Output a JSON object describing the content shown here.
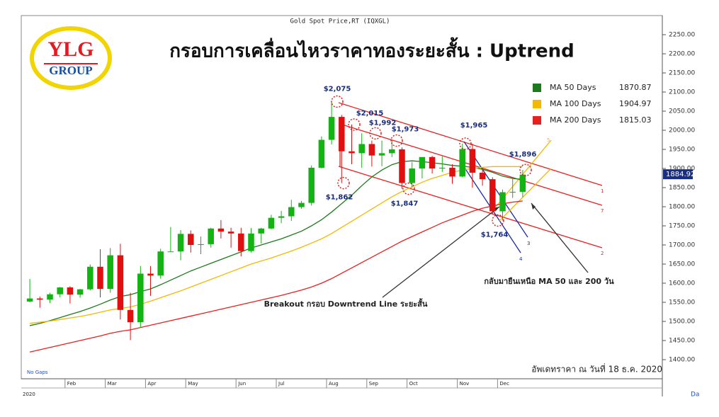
{
  "chart_data": {
    "type": "candlestick",
    "source_title": "Gold Spot Price,RT (IQXGL)",
    "title": "กรอบการเคลื่อนไหวราคาทองระยะสั้น : Uptrend",
    "logo": {
      "top": "YLG",
      "bottom": "GROUP"
    },
    "categories": [
      null,
      null,
      null,
      null,
      "Feb",
      null,
      null,
      null,
      "Mar",
      null,
      null,
      null,
      "Apr",
      null,
      null,
      null,
      "May",
      null,
      null,
      null,
      null,
      "Jun",
      null,
      null,
      null,
      "Jul",
      null,
      null,
      null,
      null,
      "Aug",
      null,
      null,
      null,
      "Sep",
      null,
      null,
      null,
      "Oct",
      null,
      null,
      null,
      null,
      "Nov",
      null,
      null,
      null,
      "Dec",
      null,
      null
    ],
    "year_label": "2020",
    "axis_end_label": "Da",
    "gaps_label": "No Gaps",
    "open": [
      1552,
      1560,
      1557,
      1571,
      1589,
      1570,
      1584,
      1643,
      1585,
      1673,
      1530,
      1498,
      1625,
      1620,
      1683,
      1683,
      1729,
      1700,
      1702,
      1743,
      1735,
      1730,
      1684,
      1730,
      1743,
      1771,
      1775,
      1799,
      1810,
      1902,
      1975,
      2035,
      1945,
      1940,
      1964,
      1934,
      1940,
      1950,
      1862,
      1900,
      1930,
      1900,
      1902,
      1879,
      1951,
      1889,
      1872,
      1788,
      1838,
      1839
    ],
    "high": [
      1611,
      1565,
      1575,
      1590,
      1592,
      1585,
      1649,
      1689,
      1692,
      1703,
      1575,
      1645,
      1645,
      1690,
      1747,
      1739,
      1738,
      1722,
      1745,
      1765,
      1745,
      1745,
      1744,
      1745,
      1779,
      1789,
      1818,
      1815,
      1908,
      1984,
      2075,
      2040,
      2015,
      1992,
      1973,
      1973,
      1973,
      1955,
      1917,
      1925,
      1933,
      1932,
      1911,
      1965,
      1965,
      1898,
      1877,
      1845,
      1875,
      1896
    ],
    "low": [
      1550,
      1536,
      1548,
      1563,
      1547,
      1562,
      1581,
      1563,
      1575,
      1505,
      1451,
      1484,
      1567,
      1612,
      1682,
      1660,
      1680,
      1676,
      1693,
      1717,
      1693,
      1670,
      1680,
      1704,
      1741,
      1757,
      1763,
      1795,
      1803,
      1900,
      1963,
      1862,
      1911,
      1902,
      1905,
      1906,
      1930,
      1847,
      1850,
      1874,
      1887,
      1891,
      1860,
      1877,
      1850,
      1855,
      1780,
      1764,
      1823,
      1825
    ],
    "close": [
      1560,
      1557,
      1571,
      1589,
      1570,
      1584,
      1643,
      1585,
      1673,
      1530,
      1498,
      1625,
      1620,
      1683,
      1683,
      1729,
      1700,
      1702,
      1743,
      1735,
      1730,
      1684,
      1730,
      1743,
      1771,
      1775,
      1799,
      1810,
      1902,
      1975,
      2035,
      1945,
      1940,
      1964,
      1934,
      1940,
      1950,
      1862,
      1900,
      1930,
      1900,
      1902,
      1879,
      1951,
      1889,
      1872,
      1788,
      1838,
      1839,
      1884
    ],
    "up_color": "#12b312",
    "down_color": "#e01010",
    "series": [
      {
        "name": "MA 50 Days",
        "color": "#1d7a1d",
        "last_value": 1870.87,
        "values": [
          1489,
          1495,
          1502,
          1510,
          1518,
          1526,
          1535,
          1545,
          1556,
          1565,
          1570,
          1578,
          1585,
          1596,
          1608,
          1620,
          1632,
          1642,
          1652,
          1662,
          1672,
          1682,
          1692,
          1700,
          1708,
          1716,
          1726,
          1736,
          1750,
          1766,
          1786,
          1808,
          1830,
          1855,
          1878,
          1896,
          1910,
          1918,
          1920,
          1918,
          1915,
          1912,
          1908,
          1906,
          1903,
          1898,
          1890,
          1880,
          1874,
          1871
        ]
      },
      {
        "name": "MA 100 Days",
        "color": "#f5b800",
        "last_value": 1904.97,
        "values": [
          1495,
          1498,
          1501,
          1505,
          1509,
          1513,
          1518,
          1524,
          1530,
          1534,
          1538,
          1545,
          1553,
          1562,
          1571,
          1580,
          1590,
          1600,
          1610,
          1620,
          1630,
          1640,
          1650,
          1658,
          1666,
          1675,
          1684,
          1694,
          1705,
          1716,
          1730,
          1746,
          1762,
          1778,
          1794,
          1810,
          1826,
          1840,
          1852,
          1864,
          1874,
          1882,
          1890,
          1896,
          1900,
          1903,
          1905,
          1905,
          1905,
          1905
        ]
      },
      {
        "name": "MA 200 Days",
        "color": "#e82020",
        "last_value": 1815.03,
        "values": [
          1420,
          1426,
          1432,
          1438,
          1444,
          1450,
          1456,
          1462,
          1469,
          1474,
          1478,
          1484,
          1490,
          1496,
          1502,
          1508,
          1514,
          1520,
          1526,
          1532,
          1538,
          1544,
          1550,
          1556,
          1562,
          1568,
          1575,
          1582,
          1590,
          1600,
          1612,
          1626,
          1640,
          1654,
          1668,
          1682,
          1696,
          1710,
          1722,
          1734,
          1746,
          1758,
          1768,
          1778,
          1788,
          1796,
          1802,
          1808,
          1812,
          1815
        ]
      }
    ],
    "last_price": 1884.92,
    "ylim": [
      1350,
      2300
    ],
    "yticks": [
      {
        "value": 1400,
        "label": "1400.00"
      },
      {
        "value": 1450,
        "label": "1450.00"
      },
      {
        "value": 1500,
        "label": "1500.00"
      },
      {
        "value": 1550,
        "label": "1550.00"
      },
      {
        "value": 1600,
        "label": "1600.00"
      },
      {
        "value": 1650,
        "label": "1650.00"
      },
      {
        "value": 1700,
        "label": "1700.00"
      },
      {
        "value": 1750,
        "label": "1750.00"
      },
      {
        "value": 1800,
        "label": "1800.00"
      },
      {
        "value": 1850,
        "label": "1850.00"
      },
      {
        "value": 1900,
        "label": "1900.00"
      },
      {
        "value": 1950,
        "label": "1950.00"
      },
      {
        "value": 2000,
        "label": "2000.00"
      },
      {
        "value": 2050,
        "label": "2050.00"
      },
      {
        "value": 2100,
        "label": "2100.00"
      },
      {
        "value": 2150,
        "label": "2150.00"
      },
      {
        "value": 2200,
        "label": "2200.00"
      },
      {
        "value": 2250,
        "label": "2250.00"
      }
    ],
    "price_points": [
      {
        "label": "$2,075",
        "value": 2075
      },
      {
        "label": "$2,015",
        "value": 2015
      },
      {
        "label": "$1,992",
        "value": 1992
      },
      {
        "label": "$1,973",
        "value": 1973
      },
      {
        "label": "$1,965",
        "value": 1965
      },
      {
        "label": "$1,896",
        "value": 1896
      },
      {
        "label": "$1,862",
        "value": 1862
      },
      {
        "label": "$1,847",
        "value": 1847
      },
      {
        "label": "$1,764",
        "value": 1764
      }
    ],
    "line_labels": [
      "1",
      "7",
      "2",
      "3",
      "4",
      "5"
    ],
    "annotations": [
      "Breakout กรอบ Downtrend Line ระยะสั้น",
      "กลับมายืนเหนือ MA 50 และ 200 วัน"
    ],
    "update_note": "อัพเดทราคา ณ วันที่ 18 ธ.ค. 2020"
  }
}
